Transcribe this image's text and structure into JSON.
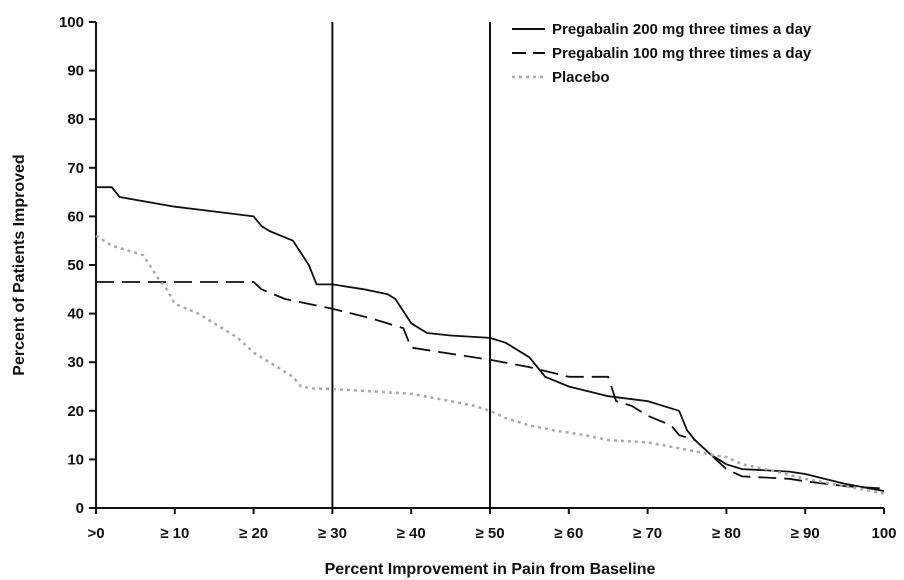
{
  "chart_data": {
    "type": "line",
    "title": "",
    "xlabel": "Percent Improvement in Pain from Baseline",
    "ylabel": "Percent of Patients Improved",
    "xlim": [
      0,
      100
    ],
    "ylim": [
      0,
      100
    ],
    "x_tick_labels": [
      ">0",
      "≥ 10",
      "≥ 20",
      "≥ 30",
      "≥ 40",
      "≥ 50",
      "≥ 60",
      "≥ 70",
      "≥ 80",
      "≥ 90",
      "100"
    ],
    "y_ticks": [
      0,
      10,
      20,
      30,
      40,
      50,
      60,
      70,
      80,
      90,
      100
    ],
    "reference_lines_x": [
      30,
      50
    ],
    "legend_position": "top-right",
    "grid": false,
    "series": [
      {
        "name": "Pregabalin 200 mg three times a day",
        "style": "solid",
        "color": "#111111",
        "x": [
          0,
          2,
          3,
          10,
          15,
          20,
          21,
          22,
          25,
          27,
          28,
          30,
          34,
          37,
          38,
          40,
          42,
          45,
          50,
          52,
          55,
          57,
          60,
          65,
          70,
          74,
          75,
          76,
          78,
          80,
          82,
          88,
          90,
          95,
          100
        ],
        "y": [
          66,
          66,
          64,
          62,
          61,
          60,
          58,
          57,
          55,
          50,
          46,
          46,
          45,
          44,
          43,
          38,
          36,
          35.5,
          35,
          34,
          31,
          27,
          25,
          23,
          22,
          20,
          16,
          14,
          11,
          9,
          8,
          7.5,
          7,
          5,
          3.5
        ]
      },
      {
        "name": "Pregabalin 100 mg three times a day",
        "style": "dashed",
        "color": "#111111",
        "x": [
          0,
          20,
          21,
          24,
          30,
          35,
          39,
          40,
          44,
          50,
          55,
          60,
          65,
          66,
          68,
          70,
          73,
          74,
          76,
          78,
          80,
          82,
          88,
          90,
          95,
          100
        ],
        "y": [
          46.5,
          46.5,
          45,
          43,
          41,
          39,
          37,
          33,
          32,
          30.5,
          29,
          27,
          27,
          22,
          21,
          19,
          17,
          15,
          14,
          11,
          8,
          6.5,
          6,
          5.5,
          4.5,
          4
        ]
      },
      {
        "name": "Placebo",
        "style": "dotted",
        "color": "#aaaaaa",
        "x": [
          0,
          2,
          6,
          8,
          9,
          10,
          13,
          15,
          18,
          20,
          23,
          25,
          26,
          28,
          30,
          35,
          40,
          45,
          48,
          50,
          52,
          55,
          58,
          62,
          65,
          70,
          75,
          78,
          80,
          82,
          85,
          90,
          95,
          100
        ],
        "y": [
          56,
          54,
          52,
          47,
          45,
          42,
          40,
          38,
          35,
          32,
          29,
          27,
          25,
          24.5,
          24.5,
          24,
          23.5,
          22,
          21,
          20,
          18.5,
          17,
          16,
          15,
          14,
          13.5,
          12,
          11,
          10.5,
          9,
          8,
          6,
          4.5,
          3
        ]
      }
    ]
  }
}
